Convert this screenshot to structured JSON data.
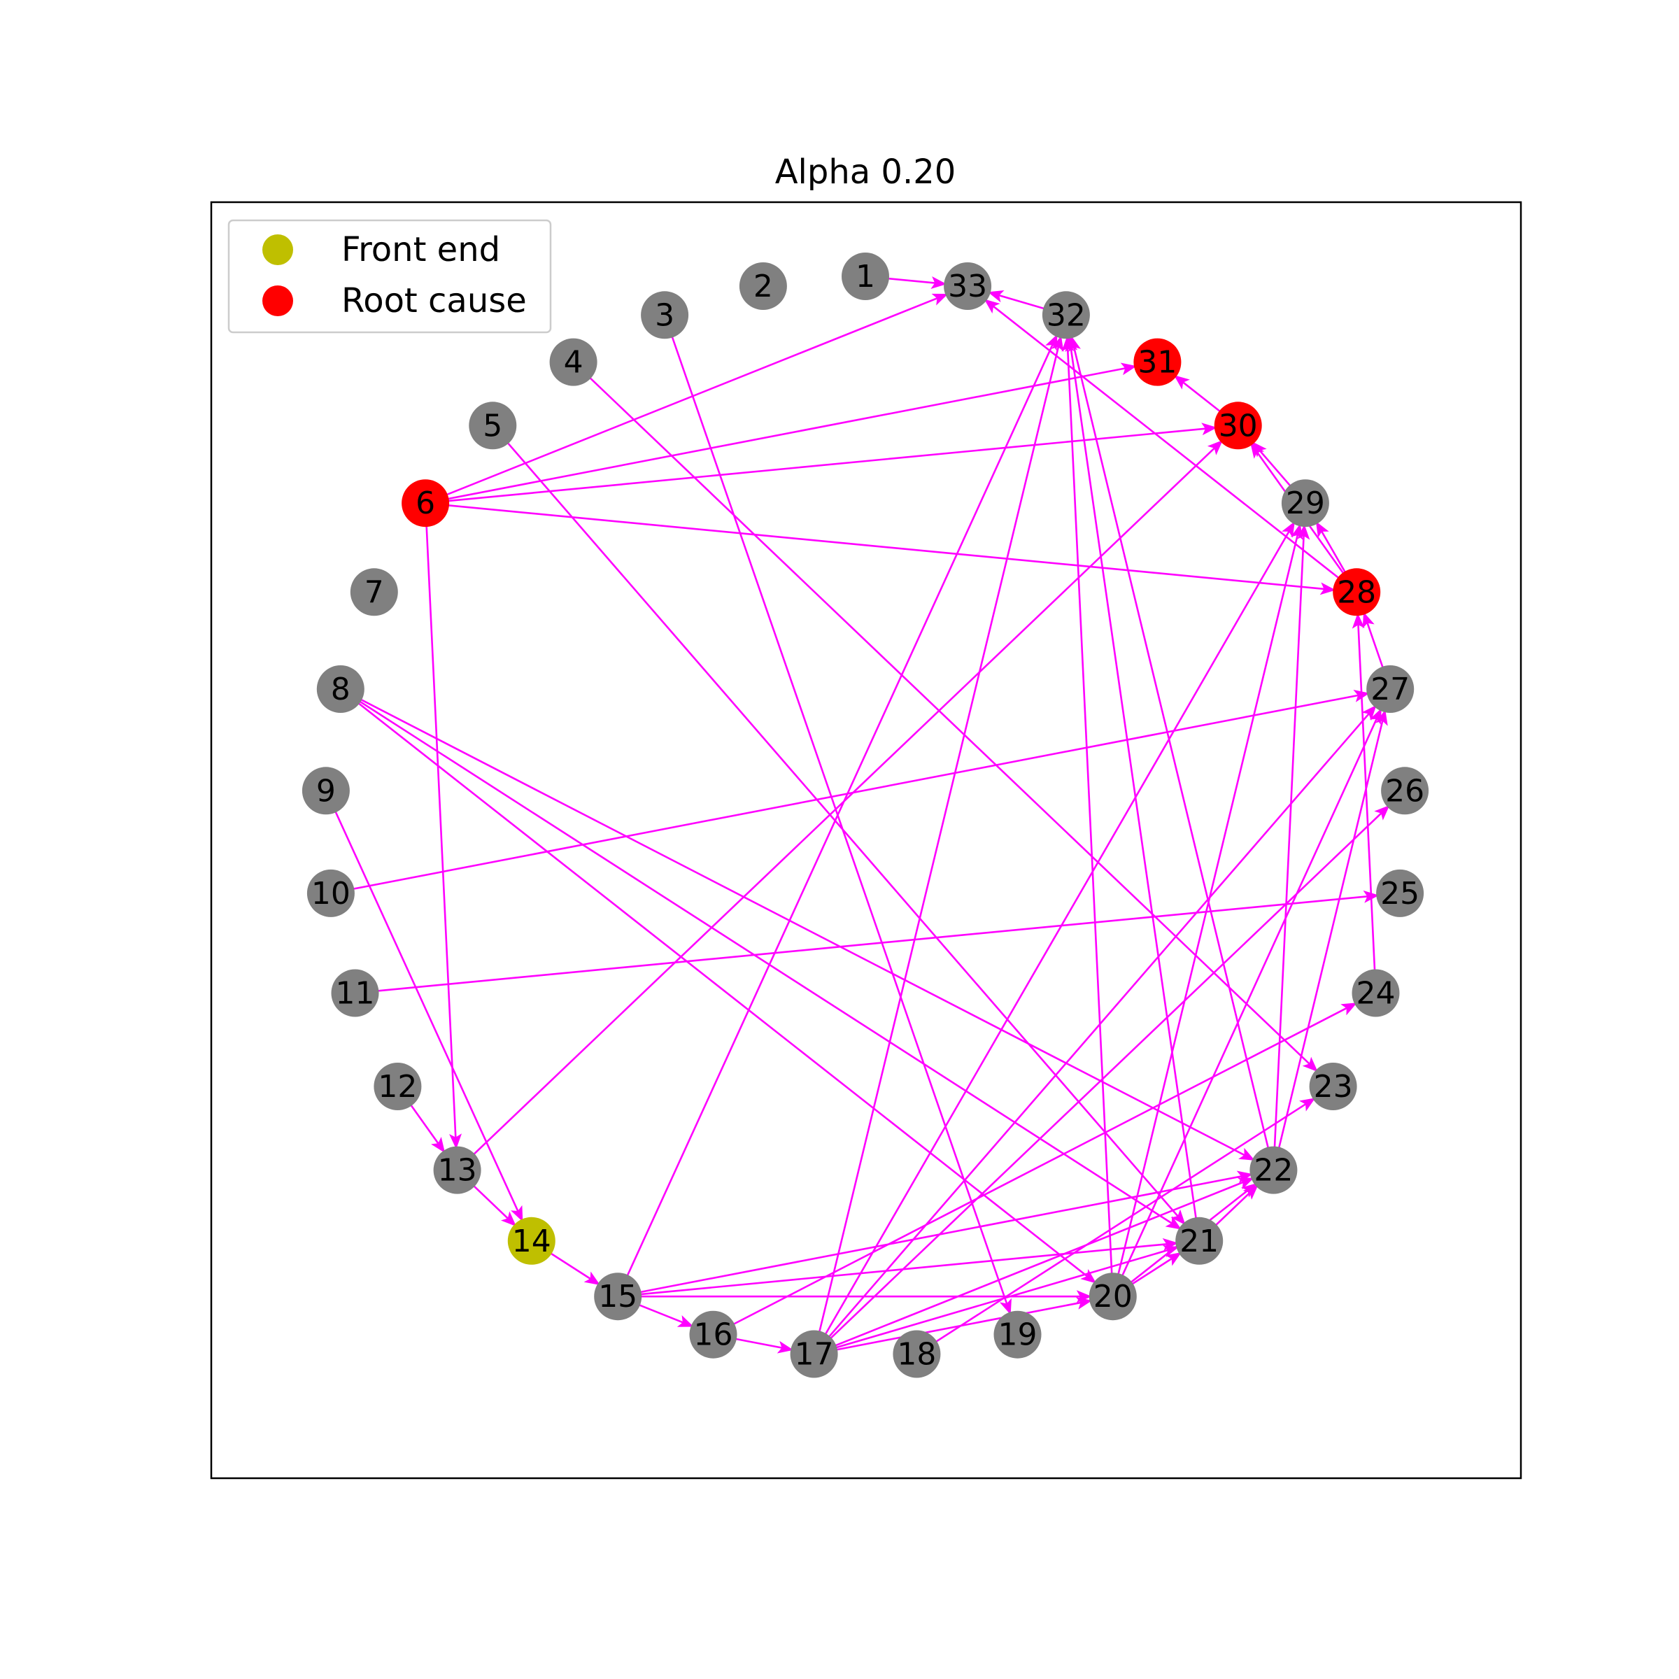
{
  "title": "Alpha 0.20",
  "legend": {
    "location": "upper-left",
    "items": [
      {
        "label": "Front end",
        "color": "#bfbf00"
      },
      {
        "label": "Root cause",
        "color": "#ff0000"
      }
    ]
  },
  "colors": {
    "default_node": "#808080",
    "edge": "#ff00ff",
    "front_end": "#bfbf00",
    "root_cause": "#ff0000"
  },
  "graph": {
    "layout": "circular",
    "node_count": 33,
    "nodes": [
      {
        "id": "1",
        "role": "normal"
      },
      {
        "id": "2",
        "role": "normal"
      },
      {
        "id": "3",
        "role": "normal"
      },
      {
        "id": "4",
        "role": "normal"
      },
      {
        "id": "5",
        "role": "normal"
      },
      {
        "id": "6",
        "role": "root_cause"
      },
      {
        "id": "7",
        "role": "normal"
      },
      {
        "id": "8",
        "role": "normal"
      },
      {
        "id": "9",
        "role": "normal"
      },
      {
        "id": "10",
        "role": "normal"
      },
      {
        "id": "11",
        "role": "normal"
      },
      {
        "id": "12",
        "role": "normal"
      },
      {
        "id": "13",
        "role": "normal"
      },
      {
        "id": "14",
        "role": "front_end"
      },
      {
        "id": "15",
        "role": "normal"
      },
      {
        "id": "16",
        "role": "normal"
      },
      {
        "id": "17",
        "role": "normal"
      },
      {
        "id": "18",
        "role": "normal"
      },
      {
        "id": "19",
        "role": "normal"
      },
      {
        "id": "20",
        "role": "normal"
      },
      {
        "id": "21",
        "role": "normal"
      },
      {
        "id": "22",
        "role": "normal"
      },
      {
        "id": "23",
        "role": "normal"
      },
      {
        "id": "24",
        "role": "normal"
      },
      {
        "id": "25",
        "role": "normal"
      },
      {
        "id": "26",
        "role": "normal"
      },
      {
        "id": "27",
        "role": "normal"
      },
      {
        "id": "28",
        "role": "root_cause"
      },
      {
        "id": "29",
        "role": "normal"
      },
      {
        "id": "30",
        "role": "root_cause"
      },
      {
        "id": "31",
        "role": "root_cause"
      },
      {
        "id": "32",
        "role": "normal"
      },
      {
        "id": "33",
        "role": "normal"
      }
    ],
    "edges": [
      [
        "1",
        "33"
      ],
      [
        "3",
        "19"
      ],
      [
        "4",
        "23"
      ],
      [
        "5",
        "21"
      ],
      [
        "6",
        "13"
      ],
      [
        "6",
        "28"
      ],
      [
        "6",
        "30"
      ],
      [
        "6",
        "31"
      ],
      [
        "6",
        "33"
      ],
      [
        "8",
        "20"
      ],
      [
        "8",
        "21"
      ],
      [
        "8",
        "22"
      ],
      [
        "9",
        "14"
      ],
      [
        "10",
        "27"
      ],
      [
        "11",
        "25"
      ],
      [
        "12",
        "13"
      ],
      [
        "13",
        "14"
      ],
      [
        "13",
        "30"
      ],
      [
        "14",
        "15"
      ],
      [
        "15",
        "16"
      ],
      [
        "15",
        "20"
      ],
      [
        "15",
        "21"
      ],
      [
        "15",
        "22"
      ],
      [
        "15",
        "32"
      ],
      [
        "16",
        "17"
      ],
      [
        "16",
        "24"
      ],
      [
        "17",
        "20"
      ],
      [
        "17",
        "21"
      ],
      [
        "17",
        "22"
      ],
      [
        "17",
        "26"
      ],
      [
        "17",
        "27"
      ],
      [
        "17",
        "29"
      ],
      [
        "17",
        "32"
      ],
      [
        "18",
        "23"
      ],
      [
        "20",
        "21"
      ],
      [
        "20",
        "22"
      ],
      [
        "20",
        "27"
      ],
      [
        "20",
        "29"
      ],
      [
        "20",
        "32"
      ],
      [
        "21",
        "22"
      ],
      [
        "21",
        "32"
      ],
      [
        "22",
        "27"
      ],
      [
        "22",
        "29"
      ],
      [
        "22",
        "32"
      ],
      [
        "24",
        "28"
      ],
      [
        "27",
        "28"
      ],
      [
        "28",
        "29"
      ],
      [
        "28",
        "30"
      ],
      [
        "28",
        "33"
      ],
      [
        "29",
        "30"
      ],
      [
        "30",
        "31"
      ],
      [
        "32",
        "33"
      ]
    ]
  }
}
